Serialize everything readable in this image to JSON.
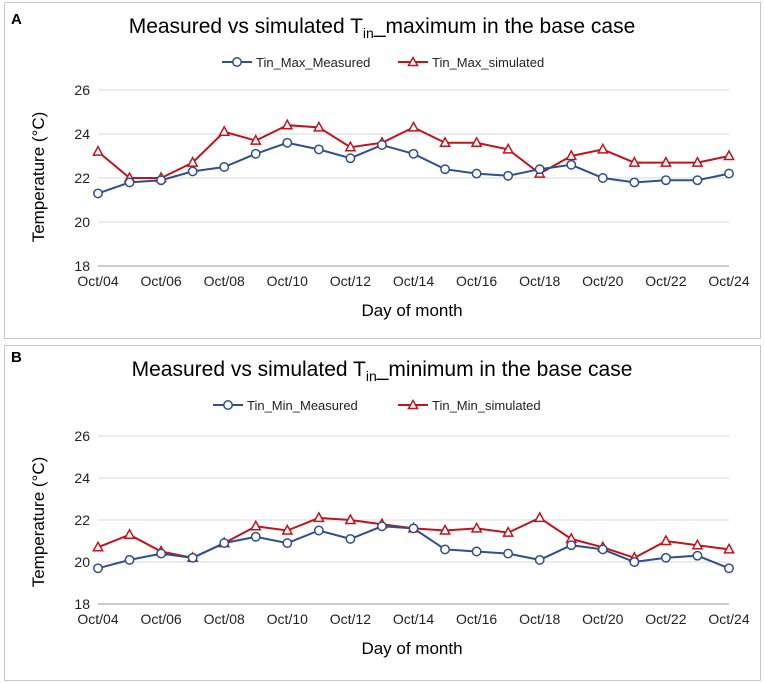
{
  "chart_data": [
    {
      "panel_label": "A",
      "type": "line",
      "title": "Measured vs simulated T",
      "title_subscript": "in",
      "title_suffix": "_maximum in the base case",
      "xlabel": "Day of month",
      "ylabel": "Temperature (°C)",
      "ylim": [
        18,
        26
      ],
      "yticks": [
        18,
        20,
        22,
        24,
        26
      ],
      "grid": true,
      "legend": "top-center",
      "x": [
        "Oct/04",
        "Oct/05",
        "Oct/06",
        "Oct/07",
        "Oct/08",
        "Oct/09",
        "Oct/10",
        "Oct/11",
        "Oct/12",
        "Oct/13",
        "Oct/14",
        "Oct/15",
        "Oct/16",
        "Oct/17",
        "Oct/18",
        "Oct/19",
        "Oct/20",
        "Oct/21",
        "Oct/22",
        "Oct/23",
        "Oct/24"
      ],
      "xtick_labels": [
        "Oct/04",
        "Oct/06",
        "Oct/08",
        "Oct/10",
        "Oct/12",
        "Oct/14",
        "Oct/16",
        "Oct/18",
        "Oct/20",
        "Oct/22",
        "Oct/24"
      ],
      "series": [
        {
          "name": "Tin_Max_Measured",
          "color": "#2f4f8f",
          "marker": "circle",
          "values": [
            21.3,
            21.8,
            21.9,
            22.3,
            22.5,
            23.1,
            23.6,
            23.3,
            22.9,
            23.5,
            23.1,
            22.4,
            22.2,
            22.1,
            22.4,
            22.6,
            22.0,
            21.8,
            21.9,
            21.9,
            22.2
          ]
        },
        {
          "name": "Tin_Max_simulated",
          "color": "#c0141c",
          "marker": "triangle",
          "values": [
            23.2,
            22.0,
            22.0,
            22.7,
            24.1,
            23.7,
            24.4,
            24.3,
            23.4,
            23.6,
            24.3,
            23.6,
            23.6,
            23.3,
            22.2,
            23.0,
            23.3,
            22.7,
            22.7,
            22.7,
            23.0
          ]
        }
      ]
    },
    {
      "panel_label": "B",
      "type": "line",
      "title": "Measured vs simulated T",
      "title_subscript": "in",
      "title_suffix": "_minimum in the base case",
      "xlabel": "Day of month",
      "ylabel": "Temperature (°C)",
      "ylim": [
        18,
        26
      ],
      "yticks": [
        18,
        20,
        22,
        24,
        26
      ],
      "grid": true,
      "legend": "top-center",
      "x": [
        "Oct/04",
        "Oct/05",
        "Oct/06",
        "Oct/07",
        "Oct/08",
        "Oct/09",
        "Oct/10",
        "Oct/11",
        "Oct/12",
        "Oct/13",
        "Oct/14",
        "Oct/15",
        "Oct/16",
        "Oct/17",
        "Oct/18",
        "Oct/19",
        "Oct/20",
        "Oct/21",
        "Oct/22",
        "Oct/23",
        "Oct/24"
      ],
      "xtick_labels": [
        "Oct/04",
        "Oct/06",
        "Oct/08",
        "Oct/10",
        "Oct/12",
        "Oct/14",
        "Oct/16",
        "Oct/18",
        "Oct/20",
        "Oct/22",
        "Oct/24"
      ],
      "series": [
        {
          "name": "Tin_Min_Measured",
          "color": "#2f4f8f",
          "marker": "circle",
          "values": [
            19.7,
            20.1,
            20.4,
            20.2,
            20.9,
            21.2,
            20.9,
            21.5,
            21.1,
            21.7,
            21.6,
            20.6,
            20.5,
            20.4,
            20.1,
            20.8,
            20.6,
            20.0,
            20.2,
            20.3,
            19.7
          ]
        },
        {
          "name": "Tin_Min_simulated",
          "color": "#c0141c",
          "marker": "triangle",
          "values": [
            20.7,
            21.3,
            20.5,
            20.2,
            20.9,
            21.7,
            21.5,
            22.1,
            22.0,
            21.8,
            21.6,
            21.5,
            21.6,
            21.4,
            22.1,
            21.1,
            20.7,
            20.2,
            21.0,
            20.8,
            20.6
          ]
        }
      ]
    }
  ]
}
